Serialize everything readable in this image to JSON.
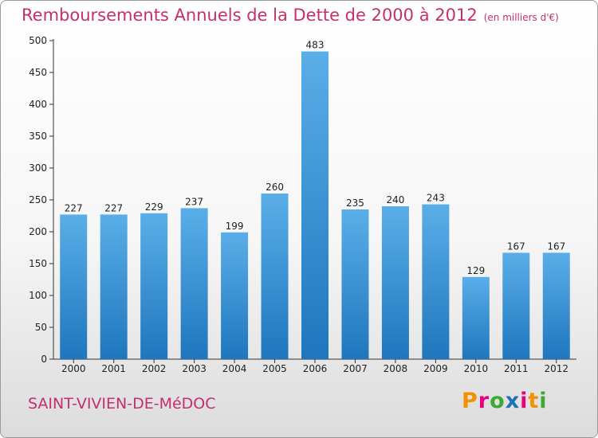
{
  "header": {
    "title": "Remboursements Annuels de la Dette de 2000 à 2012",
    "unit": "(en milliers d'€)"
  },
  "footer": {
    "commune": "SAINT-VIVIEN-DE-MéDOC",
    "brand": "Proxiti",
    "brand_colors": [
      "#f39200",
      "#e6007e",
      "#3aaa35",
      "#1d71b8",
      "#e6007e",
      "#f39200",
      "#3aaa35"
    ]
  },
  "colors": {
    "bar_light": "#5aaee8",
    "bar_dark": "#1f76bd",
    "title": "#c42f6e",
    "axis": "#333333"
  },
  "chart_data": {
    "type": "bar",
    "title": "Remboursements Annuels de la Dette de 2000 à 2012",
    "xlabel": "",
    "ylabel": "",
    "categories": [
      "2000",
      "2001",
      "2002",
      "2003",
      "2004",
      "2005",
      "2006",
      "2007",
      "2008",
      "2009",
      "2010",
      "2011",
      "2012"
    ],
    "values": [
      227,
      227,
      229,
      237,
      199,
      260,
      483,
      235,
      240,
      243,
      129,
      167,
      167
    ],
    "ylim": [
      0,
      500
    ],
    "yticks": [
      0,
      50,
      100,
      150,
      200,
      250,
      300,
      350,
      400,
      450,
      500
    ],
    "grid": false,
    "legend": "none"
  }
}
